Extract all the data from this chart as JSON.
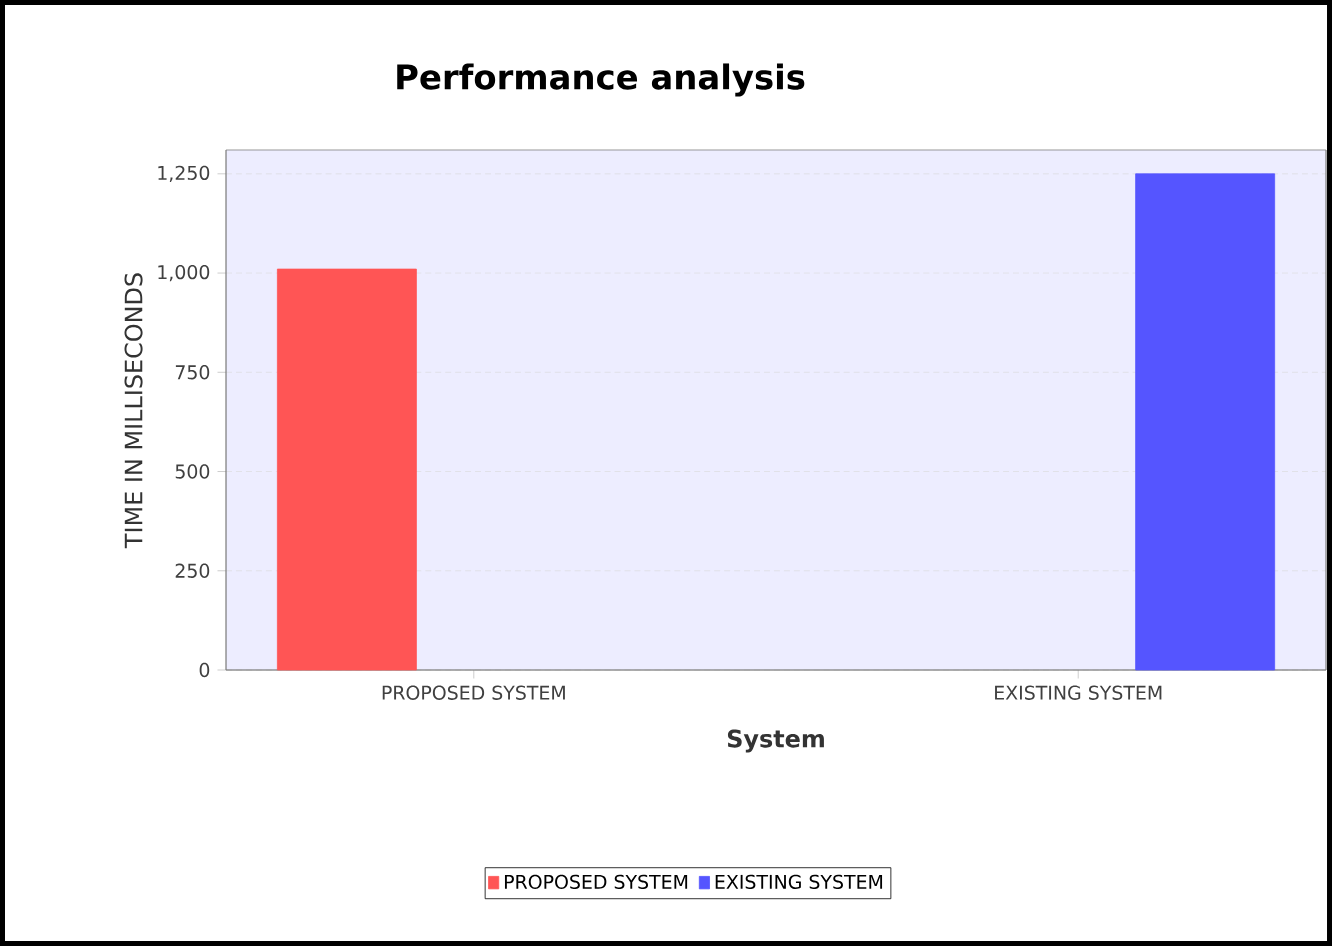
{
  "chart_data": {
    "type": "bar",
    "title": "Performance analysis",
    "xlabel": "System",
    "ylabel": "TIME IN MILLISECONDS",
    "categories": [
      "PROPOSED SYSTEM",
      "EXISTING SYSTEM"
    ],
    "series": [
      {
        "name": "PROPOSED SYSTEM",
        "color": "#ff5555",
        "values": [
          1010,
          null
        ]
      },
      {
        "name": "EXISTING SYSTEM",
        "color": "#5555ff",
        "values": [
          null,
          1250
        ]
      }
    ],
    "ylim": [
      0,
      1310
    ],
    "yticks": [
      0,
      250,
      500,
      750,
      {
        "value": 1000,
        "label": "1,000"
      },
      {
        "value": 1250,
        "label": "1,250"
      }
    ],
    "grid": "y",
    "legend": "bottom"
  }
}
